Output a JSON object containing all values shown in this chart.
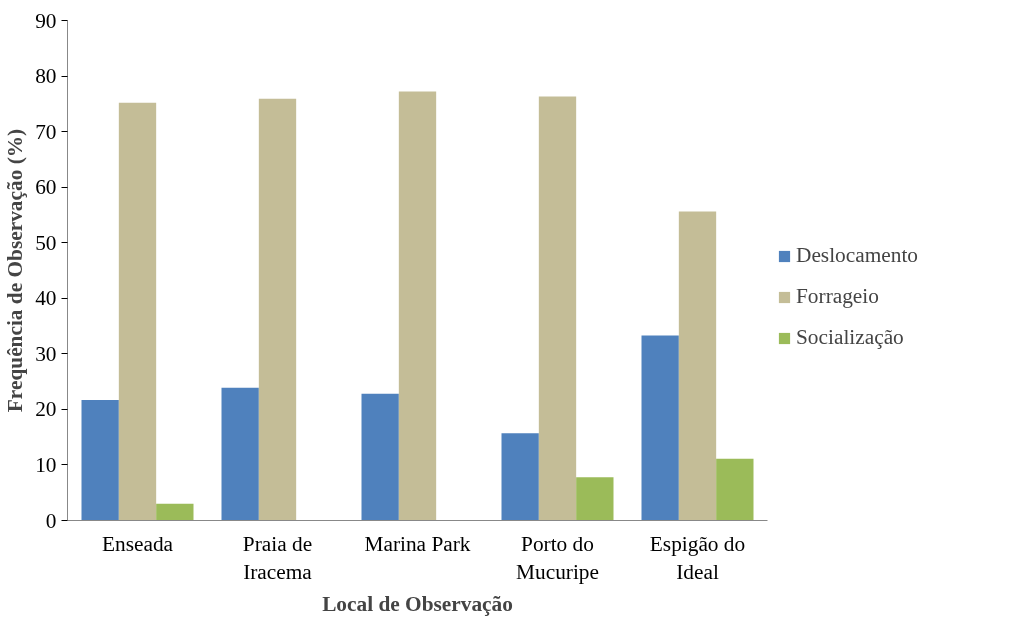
{
  "chart_data": {
    "type": "bar",
    "xlabel": "Local de Observação",
    "ylabel": "Frequência de Observação (%)",
    "categories": [
      "Enseada",
      "Praia de Iracema",
      "Marina Park",
      "Porto do Mucuripe",
      "Espigão do Ideal"
    ],
    "series": [
      {
        "name": "Deslocamento",
        "color": "#4f81bd",
        "values": [
          21.7,
          23.9,
          22.8,
          15.7,
          33.3
        ]
      },
      {
        "name": "Forrageio",
        "color": "#c4bd97",
        "values": [
          75.2,
          75.9,
          77.2,
          76.3,
          55.6
        ]
      },
      {
        "name": "Socialização",
        "color": "#9bbb59",
        "values": [
          3.0,
          0,
          0,
          7.8,
          11.1
        ]
      }
    ],
    "ylim": [
      0,
      90
    ],
    "yticks": [
      0,
      10,
      20,
      30,
      40,
      50,
      60,
      70,
      80,
      90
    ],
    "grid": false,
    "legend": "right"
  }
}
